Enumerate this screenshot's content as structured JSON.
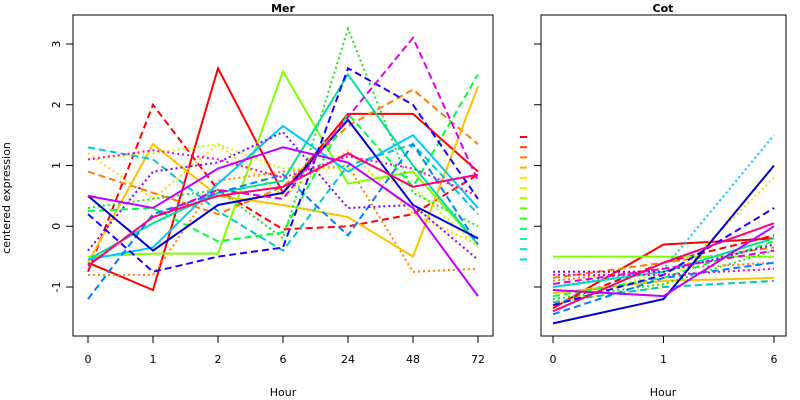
{
  "chart_data": [
    {
      "type": "line",
      "title": "Mer",
      "xlabel": "Hour",
      "ylabel": "centered expression",
      "categories": [
        "0",
        "1",
        "2",
        "6",
        "24",
        "48",
        "72"
      ],
      "ylim": [
        -1.6,
        3.2
      ],
      "y_ticks": [
        "-1",
        "0",
        "1",
        "2",
        "3"
      ],
      "grid": false,
      "series": [
        {
          "color": "#FF0000",
          "dash": "solid",
          "values": [
            -0.6,
            -1.05,
            2.6,
            0.55,
            1.85,
            1.85,
            0.9
          ]
        },
        {
          "color": "#FF0000",
          "dash": "dashed",
          "values": [
            -0.75,
            2.0,
            0.6,
            -0.05,
            0.0,
            0.2,
            0.85
          ]
        },
        {
          "color": "#FF8000",
          "dash": "dashed",
          "values": [
            0.9,
            0.55,
            0.2,
            0.65,
            1.65,
            2.25,
            1.35
          ]
        },
        {
          "color": "#FF8000",
          "dash": "dotted",
          "values": [
            -0.8,
            -0.8,
            0.75,
            0.9,
            1.0,
            -0.75,
            -0.7
          ]
        },
        {
          "color": "#FFC000",
          "dash": "solid",
          "values": [
            -0.6,
            1.35,
            0.5,
            0.35,
            0.15,
            -0.5,
            2.3
          ]
        },
        {
          "color": "#FFD700",
          "dash": "dotted",
          "values": [
            1.2,
            0.45,
            1.35,
            0.5,
            1.25,
            0.2,
            -0.3
          ]
        },
        {
          "color": "#C8FF00",
          "dash": "dotted",
          "values": [
            1.1,
            1.2,
            1.35,
            0.95,
            0.95,
            0.65,
            -0.35
          ]
        },
        {
          "color": "#80FF00",
          "dash": "solid",
          "values": [
            -0.5,
            -0.45,
            -0.45,
            2.55,
            0.7,
            0.9,
            -0.3
          ]
        },
        {
          "color": "#20E020",
          "dash": "dotted",
          "values": [
            0.3,
            0.45,
            0.6,
            -0.2,
            3.25,
            0.55,
            0.0
          ]
        },
        {
          "color": "#00FF40",
          "dash": "dashed",
          "values": [
            0.25,
            0.3,
            -0.25,
            -0.1,
            1.85,
            0.65,
            2.5
          ]
        },
        {
          "color": "#00E0A0",
          "dash": "solid",
          "values": [
            -0.55,
            0.05,
            0.55,
            0.75,
            2.5,
            1.0,
            -0.3
          ]
        },
        {
          "color": "#00C8C8",
          "dash": "dashed",
          "values": [
            1.3,
            1.1,
            0.25,
            -0.4,
            1.0,
            1.35,
            0.2
          ]
        },
        {
          "color": "#00C8FF",
          "dash": "solid",
          "values": [
            -0.55,
            -0.35,
            0.7,
            1.65,
            0.9,
            1.5,
            0.3
          ]
        },
        {
          "color": "#0080FF",
          "dash": "dashed",
          "values": [
            -1.2,
            0.2,
            0.55,
            0.85,
            -0.15,
            1.35,
            -0.3
          ]
        },
        {
          "color": "#0000CC",
          "dash": "solid",
          "values": [
            0.5,
            -0.4,
            0.35,
            0.55,
            1.75,
            0.35,
            -0.2
          ]
        },
        {
          "color": "#2000FF",
          "dash": "dashed",
          "values": [
            0.2,
            -0.75,
            -0.5,
            -0.35,
            2.6,
            2.0,
            0.45
          ]
        },
        {
          "color": "#8000FF",
          "dash": "dotted",
          "values": [
            -0.4,
            0.9,
            1.05,
            1.55,
            0.3,
            0.35,
            -0.55
          ]
        },
        {
          "color": "#C000FF",
          "dash": "solid",
          "values": [
            0.5,
            0.3,
            0.95,
            1.3,
            1.05,
            0.3,
            -1.15
          ]
        },
        {
          "color": "#E000E0",
          "dash": "dashed",
          "values": [
            -0.65,
            0.15,
            0.6,
            0.45,
            1.8,
            3.1,
            0.75
          ]
        },
        {
          "color": "#FF00C0",
          "dash": "dotted",
          "values": [
            1.1,
            1.25,
            1.1,
            0.8,
            1.15,
            0.95,
            0.5
          ]
        },
        {
          "color": "#FF0080",
          "dash": "solid",
          "values": [
            -0.65,
            0.15,
            0.5,
            0.65,
            1.2,
            0.65,
            0.85
          ]
        }
      ]
    },
    {
      "type": "line",
      "title": "Cot",
      "xlabel": "Hour",
      "ylabel": "",
      "categories": [
        "0",
        "1",
        "6"
      ],
      "ylim": [
        -1.6,
        3.2
      ],
      "grid": false,
      "series": [
        {
          "color": "#FF0000",
          "dash": "solid",
          "values": [
            -1.35,
            -0.3,
            -0.2
          ]
        },
        {
          "color": "#FF0000",
          "dash": "dashed",
          "values": [
            -1.3,
            -0.6,
            -0.15
          ]
        },
        {
          "color": "#FF8000",
          "dash": "dashed",
          "values": [
            -0.85,
            -0.6,
            -0.35
          ]
        },
        {
          "color": "#FF8000",
          "dash": "dotted",
          "values": [
            -0.9,
            -0.7,
            -0.6
          ]
        },
        {
          "color": "#FFC000",
          "dash": "solid",
          "values": [
            -1.1,
            -0.9,
            -0.85
          ]
        },
        {
          "color": "#FFD700",
          "dash": "dotted",
          "values": [
            -1.25,
            -1.0,
            0.8
          ]
        },
        {
          "color": "#C8FF00",
          "dash": "dotted",
          "values": [
            -1.3,
            -0.75,
            -0.3
          ]
        },
        {
          "color": "#80FF00",
          "dash": "solid",
          "values": [
            -0.5,
            -0.5,
            -0.5
          ]
        },
        {
          "color": "#20E020",
          "dash": "dotted",
          "values": [
            -1.2,
            -0.95,
            -0.4
          ]
        },
        {
          "color": "#00FF40",
          "dash": "dashed",
          "values": [
            -1.15,
            -0.85,
            -0.25
          ]
        },
        {
          "color": "#00E0A0",
          "dash": "solid",
          "values": [
            -1.0,
            -0.75,
            -0.2
          ]
        },
        {
          "color": "#00C8C8",
          "dash": "dashed",
          "values": [
            -1.25,
            -1.0,
            -0.9
          ]
        },
        {
          "color": "#00C8FF",
          "dash": "dotted",
          "values": [
            -1.0,
            -0.7,
            1.5
          ]
        },
        {
          "color": "#0080FF",
          "dash": "dashed",
          "values": [
            -1.45,
            -0.85,
            -0.6
          ]
        },
        {
          "color": "#0000CC",
          "dash": "solid",
          "values": [
            -1.6,
            -1.2,
            1.0
          ]
        },
        {
          "color": "#2000FF",
          "dash": "dashed",
          "values": [
            -1.3,
            -0.8,
            0.3
          ]
        },
        {
          "color": "#8000FF",
          "dash": "dotted",
          "values": [
            -0.75,
            -0.75,
            -0.3
          ]
        },
        {
          "color": "#C000FF",
          "dash": "solid",
          "values": [
            -1.05,
            -1.15,
            0.0
          ]
        },
        {
          "color": "#E000E0",
          "dash": "dashed",
          "values": [
            -0.95,
            -0.7,
            -0.4
          ]
        },
        {
          "color": "#FF00C0",
          "dash": "dotted",
          "values": [
            -0.8,
            -0.8,
            -0.7
          ]
        },
        {
          "color": "#FF0080",
          "dash": "solid",
          "values": [
            -1.4,
            -0.6,
            0.05
          ]
        }
      ]
    }
  ]
}
